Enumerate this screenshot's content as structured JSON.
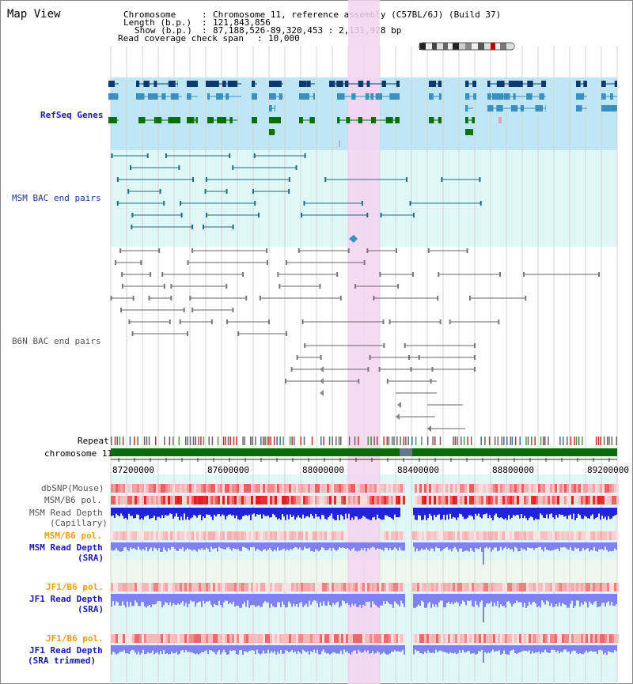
{
  "view_title": "Map View",
  "info": {
    "chromosome_label": "Chromosome",
    "chromosome_value": "Chromosome 11, reference assembly (C57BL/6J) (Build 37)",
    "length_label": "Length (b.p.)",
    "length_value": "121,843,856",
    "show_label": "Show (b.p.)",
    "show_value": "87,188,526-89,320,453 : 2,131,928 bp",
    "coverage_label": "Read coverage check span",
    "coverage_value": "10,000"
  },
  "tracks": {
    "refseq": "RefSeq Genes",
    "msm_bac": "MSM BAC end pairs",
    "b6n_bac": "B6N BAC end pairs",
    "repeat": "Repeat",
    "chromosome": "chromosome 11",
    "dbsnp": "dbSNP(Mouse)",
    "msm_b6_pol": "MSM/B6 pol.",
    "msm_depth_cap_1": "MSM Read Depth",
    "msm_depth_cap_2": "(Capillary)",
    "msm_b6_pol_2": "MSM/B6 pol.",
    "msm_depth_sra_1": "MSM Read Depth",
    "msm_depth_sra_2": "(SRA)",
    "jf1_b6_pol": "JF1/B6 pol.",
    "jf1_depth_sra_1": "JF1 Read Depth",
    "jf1_depth_sra_2": "(SRA)",
    "jf1_b6_pol_2": "JF1/B6 pol.",
    "jf1_depth_trim_1": "JF1 Read Depth",
    "jf1_depth_trim_2": "(SRA trimmed)"
  },
  "axis_ticks": [
    "87200000",
    "87600000",
    "88000000",
    "88400000",
    "88800000",
    "89200000"
  ],
  "colors": {
    "refseq_bg": "#bfe6f5",
    "bac_bg": "#dff7f7",
    "highlight": "#f5d3f0",
    "gene_navy": "#0d3a6e",
    "gene_teal": "#3a8fbf",
    "gene_green": "#0a6e0a",
    "bac_line": "#1e6f86",
    "b6n_line": "#666666",
    "chrom_green": "#0b6b0b",
    "depth_blue": "#2222dd",
    "depth_light": "#8080f0"
  }
}
